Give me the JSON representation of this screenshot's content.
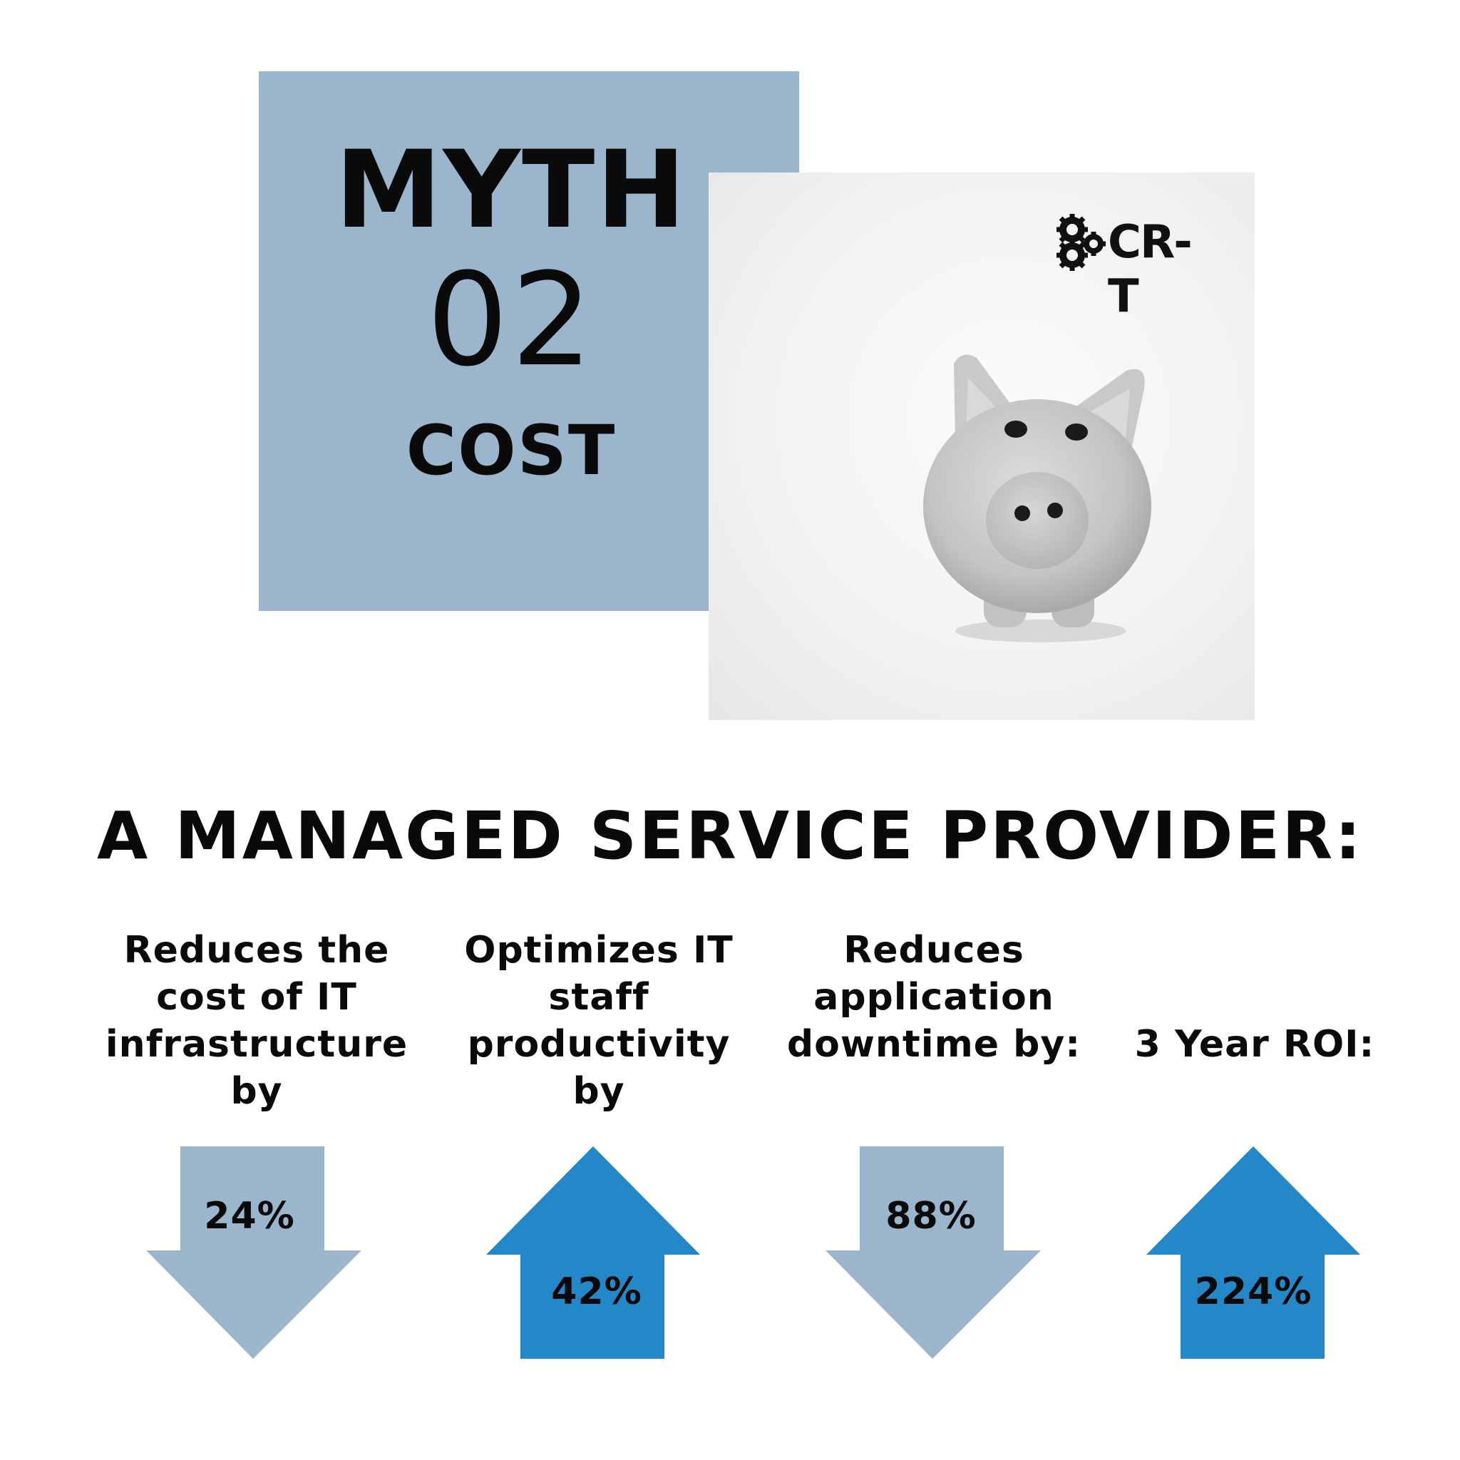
{
  "myth": {
    "title": "MYTH",
    "number": "02",
    "topic": "COST"
  },
  "logo": {
    "text": "CR-T",
    "icon": "gears-icon"
  },
  "photo": {
    "icon": "piggy-bank-icon"
  },
  "headline": "A MANAGED SERVICE PROVIDER:",
  "stats": [
    {
      "label": "Reduces the cost of IT infrastructure by",
      "value": "24%",
      "direction": "down"
    },
    {
      "label": "Optimizes IT staff productivity by",
      "value": "42%",
      "direction": "up"
    },
    {
      "label": "Reduces application downtime by:",
      "value": "88%",
      "direction": "down"
    },
    {
      "label": "3 Year ROI:",
      "value": "224%",
      "direction": "up"
    }
  ],
  "colors": {
    "myth_box": "#9bb6cc",
    "arrow_down": "#9bb6cc",
    "arrow_up": "#2487c8",
    "text": "#0a0a0a"
  }
}
